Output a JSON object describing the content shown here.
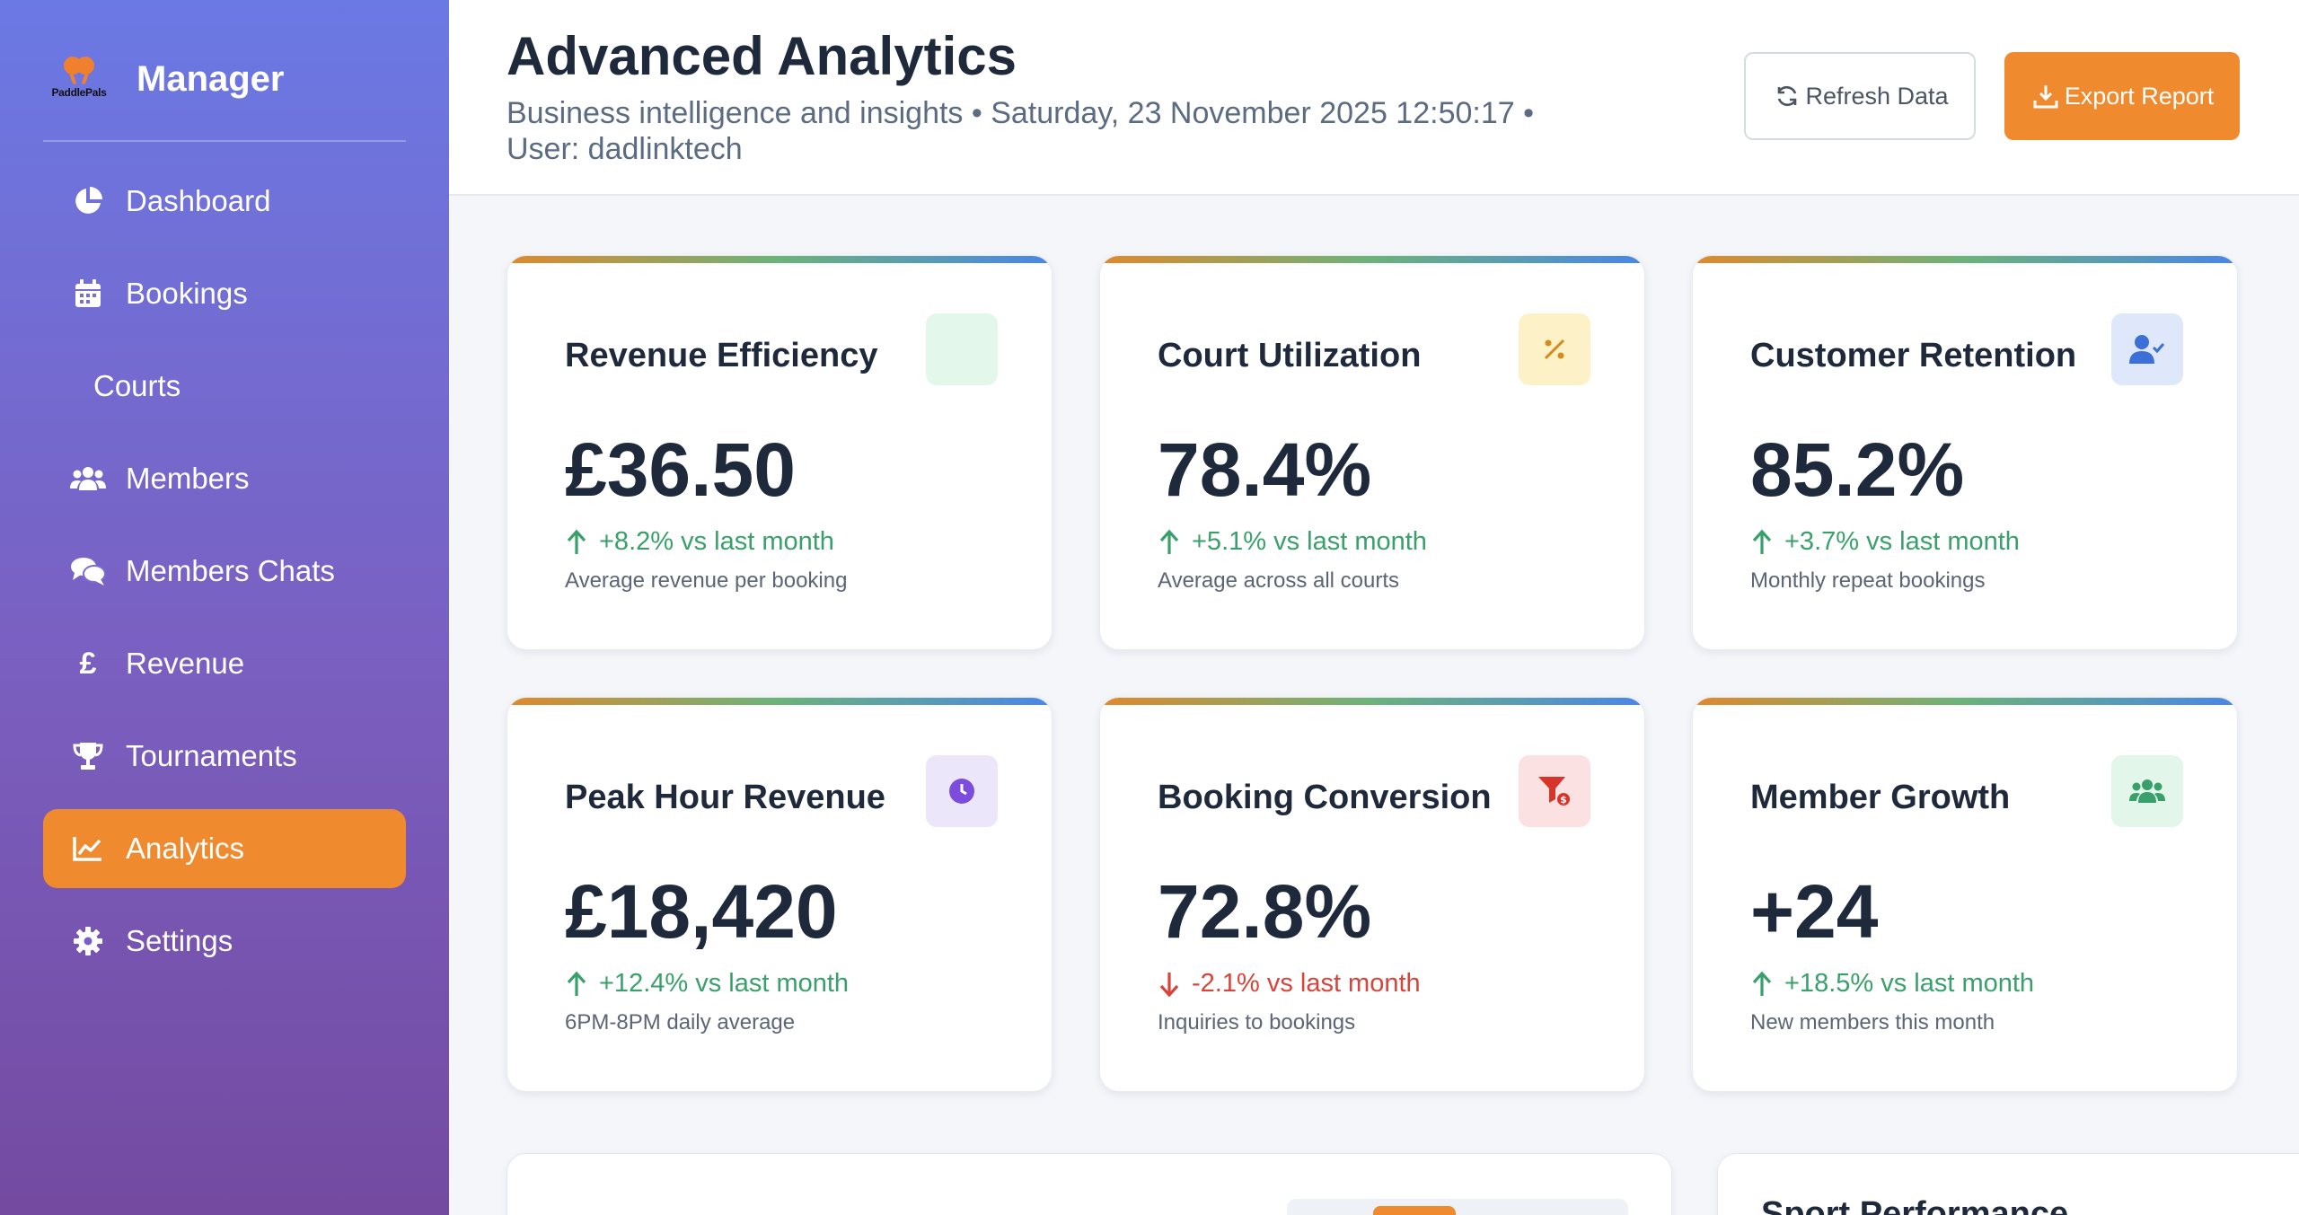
{
  "brand": {
    "logo_text": "PaddlePals",
    "title": "Manager"
  },
  "sidebar": {
    "items": [
      {
        "label": "Dashboard",
        "icon": "pie-chart-icon",
        "active": false
      },
      {
        "label": "Bookings",
        "icon": "calendar-icon",
        "active": false
      },
      {
        "label": "Courts",
        "icon": "",
        "active": false
      },
      {
        "label": "Members",
        "icon": "users-icon",
        "active": false
      },
      {
        "label": "Members Chats",
        "icon": "chat-icon",
        "active": false
      },
      {
        "label": "Revenue",
        "icon": "pound-icon",
        "icon_glyph": "£",
        "active": false
      },
      {
        "label": "Tournaments",
        "icon": "trophy-icon",
        "active": false
      },
      {
        "label": "Analytics",
        "icon": "line-chart-icon",
        "active": true
      },
      {
        "label": "Settings",
        "icon": "gear-icon",
        "active": false
      }
    ]
  },
  "header": {
    "title": "Advanced Analytics",
    "subtitle": "Business intelligence and insights • Saturday, 23 November 2025 12:50:17 • User: dadlinktech",
    "refresh_label": "Refresh Data",
    "export_label": "Export Report"
  },
  "colors": {
    "accent": "#f08a2e",
    "positive": "#3aa06b",
    "negative": "#d8443a",
    "sidebar_top": "#6b79e4",
    "sidebar_bottom": "#744aa0"
  },
  "cards": [
    {
      "title": "Revenue Efficiency",
      "value": "£36.50",
      "change": "+8.2% vs last month",
      "direction": "up",
      "note": "Average revenue per booking",
      "icon": "pound-icon",
      "icon_bg": "#e3f8ea"
    },
    {
      "title": "Court Utilization",
      "value": "78.4%",
      "change": "+5.1% vs last month",
      "direction": "up",
      "note": "Average across all courts",
      "icon": "percent-icon",
      "icon_bg": "#fdf1c7"
    },
    {
      "title": "Customer Retention",
      "value": "85.2%",
      "change": "+3.7% vs last month",
      "direction": "up",
      "note": "Monthly repeat bookings",
      "icon": "user-check-icon",
      "icon_bg": "#dfe8fb"
    },
    {
      "title": "Peak Hour Revenue",
      "value": "£18,420",
      "change": "+12.4% vs last month",
      "direction": "up",
      "note": "6PM-8PM daily average",
      "icon": "clock-icon",
      "icon_bg": "#ece6fb"
    },
    {
      "title": "Booking Conversion",
      "value": "72.8%",
      "change": "-2.1% vs last month",
      "direction": "down",
      "note": "Inquiries to bookings",
      "icon": "funnel-icon",
      "icon_bg": "#fbe1e1"
    },
    {
      "title": "Member Growth",
      "value": "+24",
      "change": "+18.5% vs last month",
      "direction": "up",
      "note": "New members this month",
      "icon": "users-icon",
      "icon_bg": "#e3f6ea"
    }
  ],
  "panels": {
    "sport_performance_title": "Sport Performance"
  }
}
